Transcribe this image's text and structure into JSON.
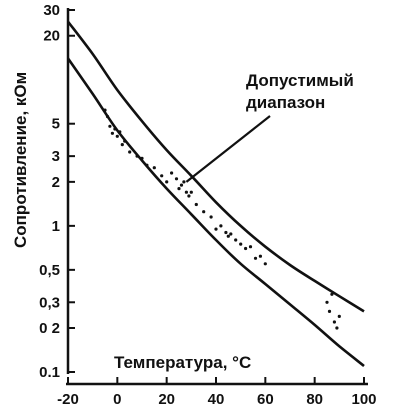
{
  "chart_data": {
    "type": "line",
    "title": "",
    "xlabel": "Температура, °С",
    "ylabel": "Сопротивление, кОм",
    "x_scale": "linear",
    "y_scale": "log",
    "xlim": [
      -20,
      100
    ],
    "ylim": [
      0.1,
      30
    ],
    "x_ticks": [
      -20,
      0,
      20,
      40,
      60,
      80,
      100
    ],
    "x_tick_labels": [
      "-20",
      "0",
      "20",
      "40",
      "60",
      "80",
      "100"
    ],
    "y_ticks": [
      0.1,
      0.2,
      0.3,
      0.5,
      1,
      2,
      3,
      5,
      20,
      30
    ],
    "y_tick_labels": [
      "0.1",
      "0 2",
      "0,3",
      "0,5",
      "1",
      "2",
      "3",
      "5",
      "20",
      "30"
    ],
    "series": [
      {
        "role": "upper-bound",
        "x": [
          -20,
          -10,
          0,
          10,
          20,
          30,
          40,
          50,
          60,
          70,
          80,
          90,
          100
        ],
        "y": [
          25,
          15,
          8.5,
          5.2,
          3.3,
          2.2,
          1.45,
          1.0,
          0.72,
          0.54,
          0.42,
          0.33,
          0.26
        ]
      },
      {
        "role": "lower-bound",
        "x": [
          -20,
          -10,
          0,
          10,
          20,
          30,
          40,
          50,
          60,
          70,
          80,
          90,
          100
        ],
        "y": [
          14,
          8,
          4.5,
          2.8,
          1.8,
          1.2,
          0.8,
          0.55,
          0.4,
          0.29,
          0.21,
          0.15,
          0.11
        ]
      },
      {
        "role": "measured-points",
        "x": [
          -5,
          -4,
          -3,
          -2,
          -1,
          0,
          1,
          2,
          3,
          5,
          8,
          10,
          12,
          15,
          18,
          20,
          22,
          24,
          25,
          26,
          27,
          28,
          29,
          30,
          32,
          35,
          38,
          40,
          42,
          44,
          45,
          46,
          48,
          50,
          52,
          54,
          56,
          58,
          60,
          85,
          86,
          87,
          88,
          89,
          90
        ],
        "y": [
          6.2,
          5.6,
          4.8,
          4.3,
          4.6,
          4.1,
          4.4,
          3.6,
          3.8,
          3.2,
          3.0,
          2.9,
          2.6,
          2.5,
          2.2,
          2.0,
          2.3,
          2.1,
          1.8,
          1.9,
          2.0,
          1.7,
          1.6,
          1.7,
          1.4,
          1.25,
          1.15,
          0.95,
          1.0,
          0.9,
          0.85,
          0.88,
          0.8,
          0.75,
          0.7,
          0.72,
          0.6,
          0.62,
          0.55,
          0.3,
          0.26,
          0.34,
          0.22,
          0.2,
          0.24
        ]
      }
    ],
    "annotations": [
      {
        "text_line1": "Допустимый",
        "text_line2": "диапазон",
        "points_to": {
          "x": 28,
          "y": 2
        }
      }
    ],
    "grid": false,
    "legend": "none"
  }
}
